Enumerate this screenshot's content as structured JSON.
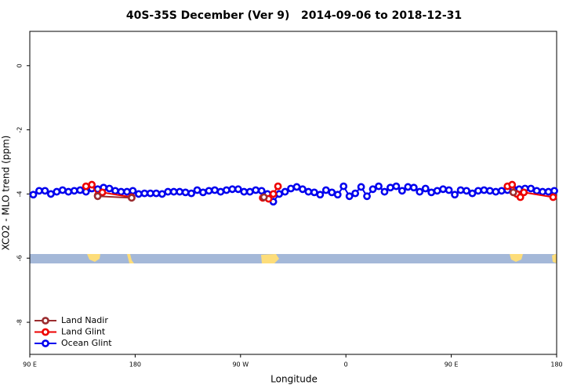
{
  "chart_data": {
    "type": "line",
    "title": "40S-35S December (Ver 9)   2014-09-06 to 2018-12-31",
    "x_label": "Longitude",
    "y_label": "XCO2 - MLO trend (ppm)",
    "xlim": [
      90,
      540
    ],
    "ylim": [
      -9,
      1.07
    ],
    "xticks": [
      {
        "value": 90,
        "label": "90 E"
      },
      180,
      {
        "value": 270,
        "label": "90 W"
      },
      {
        "value": 360,
        "label": "0"
      },
      {
        "value": 450,
        "label": "90 E"
      },
      {
        "value": 540,
        "label": "180"
      }
    ],
    "yticks": [
      0,
      -2,
      -4,
      -6,
      -8
    ],
    "legend": "bottomleft",
    "series": [
      {
        "name": "Land Nadir",
        "color": "#9b2d30",
        "x": [
          148,
          177,
          290,
          503
        ],
        "values": [
          -4.07,
          -4.12,
          -4.1,
          -3.95
        ]
      },
      {
        "name": "Land Glint",
        "color": "#ee0000",
        "x": [
          138,
          143,
          148,
          152,
          177,
          289,
          294,
          298,
          302,
          498,
          502,
          506,
          509,
          512,
          537
        ],
        "values": [
          -3.76,
          -3.71,
          -4.05,
          -3.95,
          -4.1,
          -4.12,
          -4.15,
          -4.0,
          -3.76,
          -3.76,
          -3.71,
          -4.0,
          -4.1,
          -3.95,
          -4.1
        ]
      },
      {
        "name": "Ocean Glint",
        "color": "#0000ee",
        "x": [
          93,
          98,
          103,
          108,
          113,
          118,
          123,
          128,
          133,
          138,
          143,
          148,
          153,
          158,
          163,
          168,
          173,
          178,
          183,
          188,
          193,
          198,
          203,
          208,
          213,
          218,
          223,
          228,
          233,
          238,
          243,
          248,
          253,
          258,
          263,
          268,
          273,
          278,
          283,
          288,
          293,
          298,
          303,
          308,
          313,
          318,
          323,
          328,
          333,
          338,
          343,
          348,
          353,
          358,
          363,
          368,
          373,
          378,
          383,
          388,
          393,
          398,
          403,
          408,
          413,
          418,
          423,
          428,
          433,
          438,
          443,
          448,
          453,
          458,
          463,
          468,
          473,
          478,
          483,
          488,
          493,
          498,
          503,
          508,
          513,
          518,
          523,
          528,
          533,
          538
        ],
        "values": [
          -4.02,
          -3.9,
          -3.9,
          -4.0,
          -3.93,
          -3.88,
          -3.93,
          -3.9,
          -3.88,
          -3.93,
          -3.83,
          -3.85,
          -3.8,
          -3.83,
          -3.9,
          -3.93,
          -3.93,
          -3.9,
          -4.0,
          -3.98,
          -3.98,
          -3.98,
          -4.0,
          -3.93,
          -3.93,
          -3.93,
          -3.95,
          -3.98,
          -3.88,
          -3.95,
          -3.9,
          -3.88,
          -3.93,
          -3.88,
          -3.85,
          -3.85,
          -3.93,
          -3.93,
          -3.88,
          -3.9,
          -4.0,
          -4.24,
          -4.0,
          -3.93,
          -3.83,
          -3.78,
          -3.85,
          -3.93,
          -3.95,
          -4.02,
          -3.88,
          -3.95,
          -4.02,
          -3.76,
          -4.07,
          -3.98,
          -3.78,
          -4.07,
          -3.85,
          -3.76,
          -3.93,
          -3.8,
          -3.76,
          -3.9,
          -3.78,
          -3.8,
          -3.93,
          -3.83,
          -3.95,
          -3.9,
          -3.85,
          -3.88,
          -4.02,
          -3.88,
          -3.9,
          -3.98,
          -3.9,
          -3.88,
          -3.9,
          -3.93,
          -3.9,
          -3.88,
          -3.85,
          -3.85,
          -3.83,
          -3.83,
          -3.9,
          -3.93,
          -3.93,
          -3.9
        ]
      }
    ]
  }
}
